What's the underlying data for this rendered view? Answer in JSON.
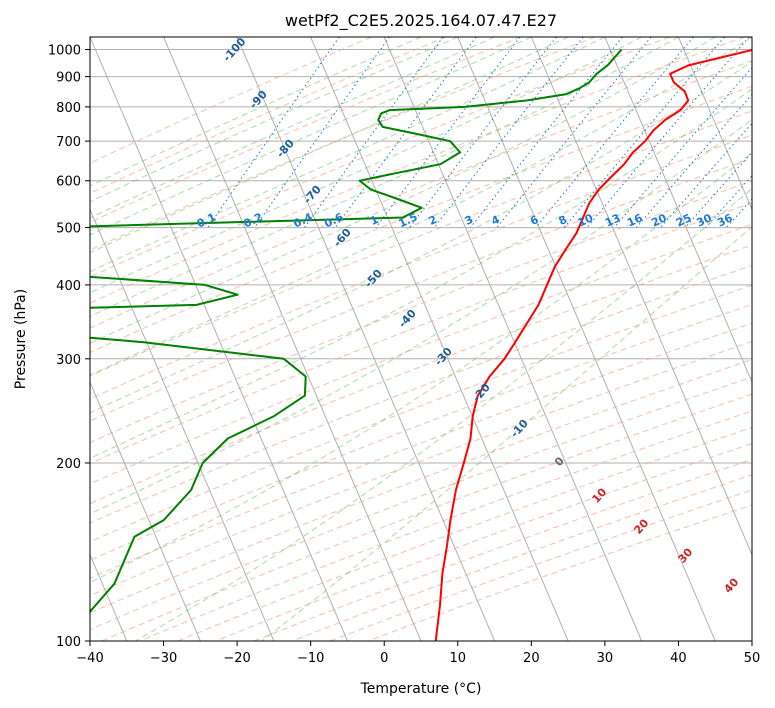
{
  "chart_data": {
    "type": "line",
    "title": "wetPf2_C2E5.2025.164.07.47.E27",
    "xlabel": "Temperature (°C)",
    "ylabel": "Pressure (hPa)",
    "xlim": [
      -40,
      50
    ],
    "ylim": [
      1050,
      100
    ],
    "y_scale": "log",
    "x_ticks": [
      -40,
      -30,
      -20,
      -10,
      0,
      10,
      20,
      30,
      40,
      50
    ],
    "y_ticks": [
      100,
      200,
      300,
      400,
      500,
      600,
      700,
      800,
      900,
      1000
    ],
    "grid": true,
    "skew_isotherms": true,
    "dry_adiabats_labels": [
      "-100",
      "-90",
      "-80",
      "-70",
      "-60",
      "-50",
      "-40",
      "-30",
      "-20",
      "-10",
      "0",
      "10",
      "20",
      "30",
      "40"
    ],
    "mixing_ratio_labels": [
      "0.1",
      "0.2",
      "0.4",
      "0.6",
      "1",
      "1.5",
      "2",
      "3",
      "4",
      "6",
      "8",
      "10",
      "13",
      "16",
      "20",
      "25",
      "30",
      "36"
    ],
    "series": [
      {
        "color": "#ff0000",
        "points": [
          [
            1000,
            16
          ],
          [
            970,
            12
          ],
          [
            940,
            8
          ],
          [
            910,
            6
          ],
          [
            880,
            7
          ],
          [
            850,
            9
          ],
          [
            820,
            10
          ],
          [
            790,
            9.5
          ],
          [
            760,
            8
          ],
          [
            730,
            7
          ],
          [
            700,
            6.5
          ],
          [
            670,
            5.5
          ],
          [
            640,
            5
          ],
          [
            610,
            4
          ],
          [
            580,
            3
          ],
          [
            550,
            2.5
          ],
          [
            520,
            2.5
          ],
          [
            490,
            2.5
          ],
          [
            460,
            2
          ],
          [
            430,
            1.5
          ],
          [
            400,
            1.5
          ],
          [
            370,
            1.5
          ],
          [
            345,
            1
          ],
          [
            320,
            0.5
          ],
          [
            300,
            0
          ],
          [
            280,
            -1
          ],
          [
            260,
            -1.5
          ],
          [
            240,
            -1
          ],
          [
            220,
            0
          ],
          [
            200,
            0.5
          ],
          [
            180,
            1
          ],
          [
            160,
            2
          ],
          [
            145,
            3
          ],
          [
            130,
            4
          ],
          [
            115,
            5.5
          ],
          [
            100,
            7
          ]
        ]
      },
      {
        "color": "#008000",
        "points": [
          [
            1000,
            -2
          ],
          [
            970,
            -2.5
          ],
          [
            940,
            -3
          ],
          [
            910,
            -4
          ],
          [
            880,
            -4.5
          ],
          [
            860,
            -5.5
          ],
          [
            840,
            -7
          ],
          [
            820,
            -12
          ],
          [
            800,
            -20
          ],
          [
            790,
            -30
          ],
          [
            780,
            -31
          ],
          [
            760,
            -31
          ],
          [
            740,
            -30
          ],
          [
            720,
            -25
          ],
          [
            700,
            -20
          ],
          [
            670,
            -18
          ],
          [
            640,
            -20
          ],
          [
            620,
            -25
          ],
          [
            600,
            -30
          ],
          [
            580,
            -28
          ],
          [
            560,
            -24
          ],
          [
            540,
            -20
          ],
          [
            520,
            -22
          ],
          [
            500,
            -70
          ],
          [
            420,
            -70
          ],
          [
            400,
            -45
          ],
          [
            385,
            -40
          ],
          [
            370,
            -45
          ],
          [
            360,
            -80
          ],
          [
            345,
            -75
          ],
          [
            335,
            -70
          ],
          [
            320,
            -50
          ],
          [
            300,
            -30
          ],
          [
            280,
            -26
          ],
          [
            260,
            -25
          ],
          [
            240,
            -28
          ],
          [
            220,
            -33
          ],
          [
            200,
            -35
          ],
          [
            180,
            -35
          ],
          [
            160,
            -37
          ],
          [
            150,
            -40
          ],
          [
            140,
            -40
          ],
          [
            125,
            -40
          ],
          [
            110,
            -42
          ],
          [
            100,
            -44
          ]
        ]
      }
    ]
  }
}
